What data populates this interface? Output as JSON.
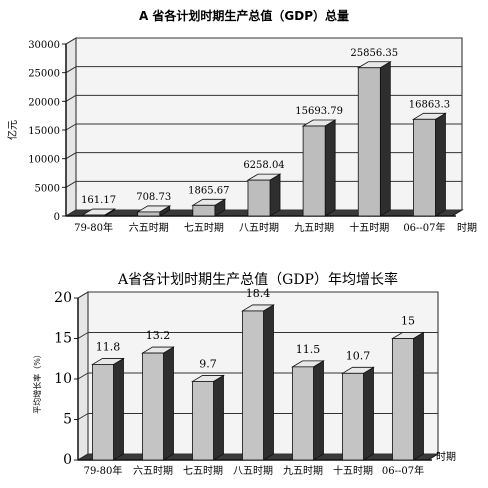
{
  "chart_data": [
    {
      "type": "bar",
      "title": "A 省各计划时期生产总值（GDP）总量",
      "categories": [
        "79-80年",
        "六五时期",
        "七五时期",
        "八五时期",
        "九五时期",
        "十五时期",
        "06--07年"
      ],
      "values": [
        161.17,
        708.73,
        1865.67,
        6258.04,
        15693.79,
        25856.35,
        16863.3
      ],
      "value_labels": [
        "161.17",
        "708.73",
        "1865.67",
        "6258.04",
        "15693.79",
        "25856.35",
        "16863.3"
      ],
      "ylabel": "亿元",
      "xlabel": "时期",
      "ylim": [
        0,
        30000
      ],
      "yticks": [
        "0",
        "5000",
        "10000",
        "15000",
        "20000",
        "25000",
        "30000"
      ],
      "grid": true,
      "style": "3d-bar",
      "bar_color": "#bdbdbd"
    },
    {
      "type": "bar",
      "title": "A省各计划时期生产总值（GDP）年均增长率",
      "categories": [
        "79-80年",
        "六五时期",
        "七五时期",
        "八五时期",
        "九五时期",
        "十五时期",
        "06--07年"
      ],
      "values": [
        11.8,
        13.2,
        9.7,
        18.4,
        11.5,
        10.7,
        15
      ],
      "value_labels": [
        "11.8",
        "13.2",
        "9.7",
        "18.4",
        "11.5",
        "10.7",
        "15"
      ],
      "ylabel": "平均增长率（%）",
      "xlabel": "时期",
      "ylim": [
        0,
        20
      ],
      "yticks": [
        "0",
        "5",
        "10",
        "15",
        "20"
      ],
      "grid": true,
      "style": "3d-bar",
      "bar_color": "#c4c4c4"
    }
  ]
}
